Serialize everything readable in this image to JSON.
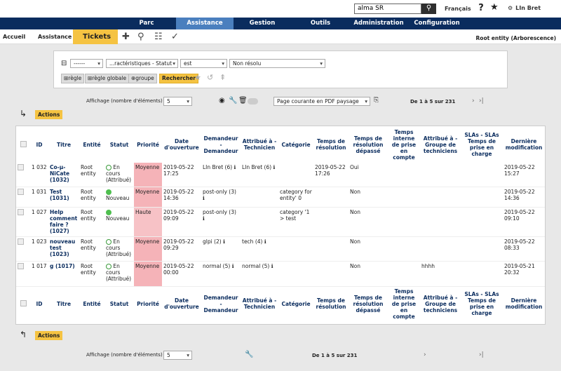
{
  "topbar": {
    "search_value": "alma SR",
    "language": "Français",
    "user": "LIn Bret"
  },
  "nav": [
    "Parc",
    "Assistance",
    "Gestion",
    "Outils",
    "Administration",
    "Configuration"
  ],
  "breadcrumb": {
    "home": "Accueil",
    "section": "Assistance",
    "current": "Tickets",
    "entity": "Root entity (Arborescence)"
  },
  "filter": {
    "op1": "------",
    "field": "...ractéristiques - Statut",
    "op2": "est",
    "value": "Non résolu",
    "btn_rule": "règle",
    "btn_global": "règle globale",
    "btn_group": "groupe",
    "btn_search": "Rechercher"
  },
  "pager": {
    "display_label": "Affichage (nombre d'éléments)",
    "display_value": "5",
    "pdf_option": "Page courante en PDF paysage",
    "range": "De 1 à 5 sur 231"
  },
  "actions_label": "Actions",
  "columns": [
    "ID",
    "Titre",
    "Entité",
    "Statut",
    "Priorité",
    "Date d'ouverture",
    "Demandeur - Demandeur",
    "Attribué à - Technicien",
    "Catégorie",
    "Temps de résolution",
    "Temps de résolution dépassé",
    "Temps interne de prise en compte",
    "Attribué à - Groupe de techniciens",
    "SLAs - SLAs Temps de prise en charge",
    "Dernière modification"
  ],
  "rows": [
    {
      "id": "1 032",
      "title": "Co-µ-NiCate (1032)",
      "entity": "Root entity",
      "status": "En cours (Attribué)",
      "priority": "Moyenne",
      "opened": "2019-05-22 17:25",
      "requester": "LIn Bret (6)",
      "tech": "LIn Bret (6)",
      "category": "",
      "resolution": "2019-05-22 17:26",
      "exceeded": "Oui",
      "internal": "",
      "group": "",
      "sla": "",
      "modified": "2019-05-22 15:27"
    },
    {
      "id": "1 031",
      "title": "Test (1031)",
      "entity": "Root entity",
      "status": "Nouveau",
      "priority": "Moyenne",
      "opened": "2019-05-22 14:36",
      "requester": "post-only (3)",
      "tech": "",
      "category": "category for entity' 0",
      "resolution": "",
      "exceeded": "Non",
      "internal": "",
      "group": "",
      "sla": "",
      "modified": "2019-05-22 14:36"
    },
    {
      "id": "1 027",
      "title": "Help comment faire ? (1027)",
      "entity": "Root entity",
      "status": "Nouveau",
      "priority": "Haute",
      "opened": "2019-05-22 09:09",
      "requester": "post-only (3)",
      "tech": "",
      "category": "category '1 > test",
      "resolution": "",
      "exceeded": "Non",
      "internal": "",
      "group": "",
      "sla": "",
      "modified": "2019-05-22 09:10"
    },
    {
      "id": "1 023",
      "title": "nouveau test (1023)",
      "entity": "Root entity",
      "status": "En cours (Attribué)",
      "priority": "Moyenne",
      "opened": "2019-05-22 09:29",
      "requester": "glpi (2)",
      "tech": "tech (4)",
      "category": "",
      "resolution": "",
      "exceeded": "Non",
      "internal": "",
      "group": "",
      "sla": "",
      "modified": "2019-05-22 08:33"
    },
    {
      "id": "1 017",
      "title": "g (1017)",
      "entity": "Root entity",
      "status": "En cours (Attribué)",
      "priority": "Moyenne",
      "opened": "2019-05-22 00:00",
      "requester": "normal (5)",
      "tech": "normal (5)",
      "category": "",
      "resolution": "",
      "exceeded": "Non",
      "internal": "",
      "group": "hhhh",
      "sla": "",
      "modified": "2019-05-21 20:32"
    }
  ],
  "colors": {
    "nav_bg": "#0a2c5e",
    "nav_active": "#4a7fbe",
    "accent": "#f5c342",
    "priority_medium": "#f5b3b8"
  }
}
